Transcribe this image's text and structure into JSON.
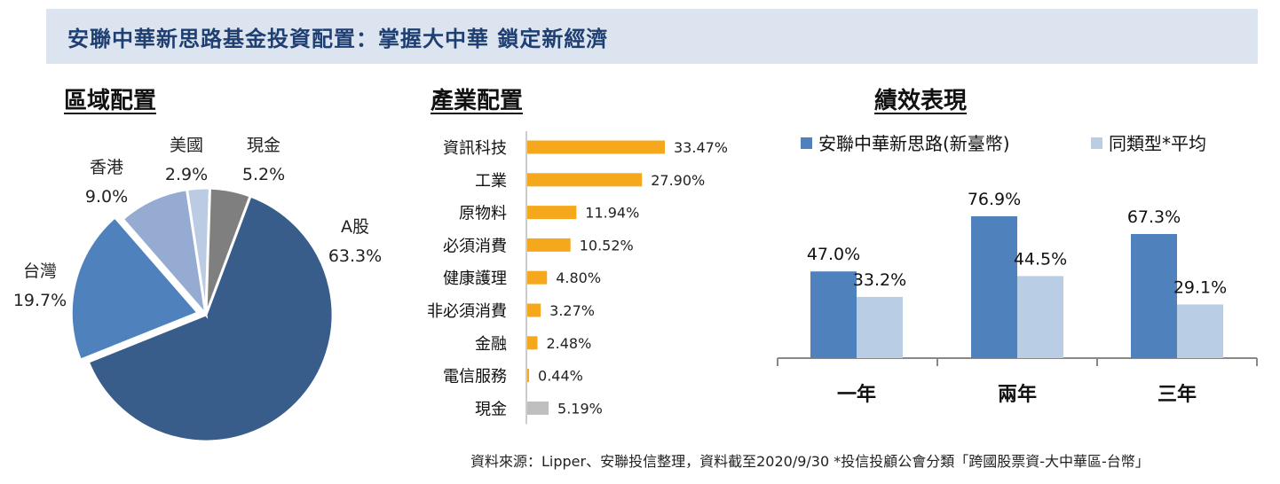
{
  "header": {
    "title": "安聯中華新思路基金投資配置：掌握大中華 鎖定新經濟"
  },
  "sections": {
    "region": "區域配置",
    "industry": "產業配置",
    "performance": "績效表現"
  },
  "chart_data": [
    {
      "type": "pie",
      "title": "區域配置",
      "slices": [
        {
          "label": "A股",
          "value": 63.3,
          "value_label": "63.3%",
          "color": "#385d8a"
        },
        {
          "label": "台灣",
          "value": 19.7,
          "value_label": "19.7%",
          "color": "#4f81bd"
        },
        {
          "label": "香港",
          "value": 9.0,
          "value_label": "9.0%",
          "color": "#95abd1"
        },
        {
          "label": "美國",
          "value": 2.9,
          "value_label": "2.9%",
          "color": "#bccbe4"
        },
        {
          "label": "現金",
          "value": 5.2,
          "value_label": "5.2%",
          "color": "#7f7f7f"
        }
      ]
    },
    {
      "type": "bar",
      "orientation": "horizontal",
      "title": "產業配置",
      "categories": [
        "資訊科技",
        "工業",
        "原物料",
        "必須消費",
        "健康護理",
        "非必須消費",
        "金融",
        "電信服務",
        "現金"
      ],
      "values": [
        33.47,
        27.9,
        11.94,
        10.52,
        4.8,
        3.27,
        2.48,
        0.44,
        5.19
      ],
      "value_labels": [
        "33.47%",
        "27.90%",
        "11.94%",
        "10.52%",
        "4.80%",
        "3.27%",
        "2.48%",
        "0.44%",
        "5.19%"
      ],
      "colors": [
        "#f5a81c",
        "#f5a81c",
        "#f5a81c",
        "#f5a81c",
        "#f5a81c",
        "#f5a81c",
        "#f5a81c",
        "#f5a81c",
        "#bfbfbf"
      ]
    },
    {
      "type": "bar",
      "title": "績效表現",
      "categories": [
        "一年",
        "兩年",
        "三年"
      ],
      "series": [
        {
          "name": "安聯中華新思路(新臺幣)",
          "values": [
            47.0,
            76.9,
            67.3
          ],
          "value_labels": [
            "47.0%",
            "76.9%",
            "67.3%"
          ],
          "color": "#4f81bd"
        },
        {
          "name": "同類型*平均",
          "values": [
            33.2,
            44.5,
            29.1
          ],
          "value_labels": [
            "33.2%",
            "44.5%",
            "29.1%"
          ],
          "color": "#b9cde5"
        }
      ],
      "legend": "top"
    }
  ],
  "footer": {
    "source": "資料來源：Lipper、安聯投信整理，資料截至2020/9/30 *投信投顧公會分類「跨國股票資-大中華區-台幣」"
  }
}
